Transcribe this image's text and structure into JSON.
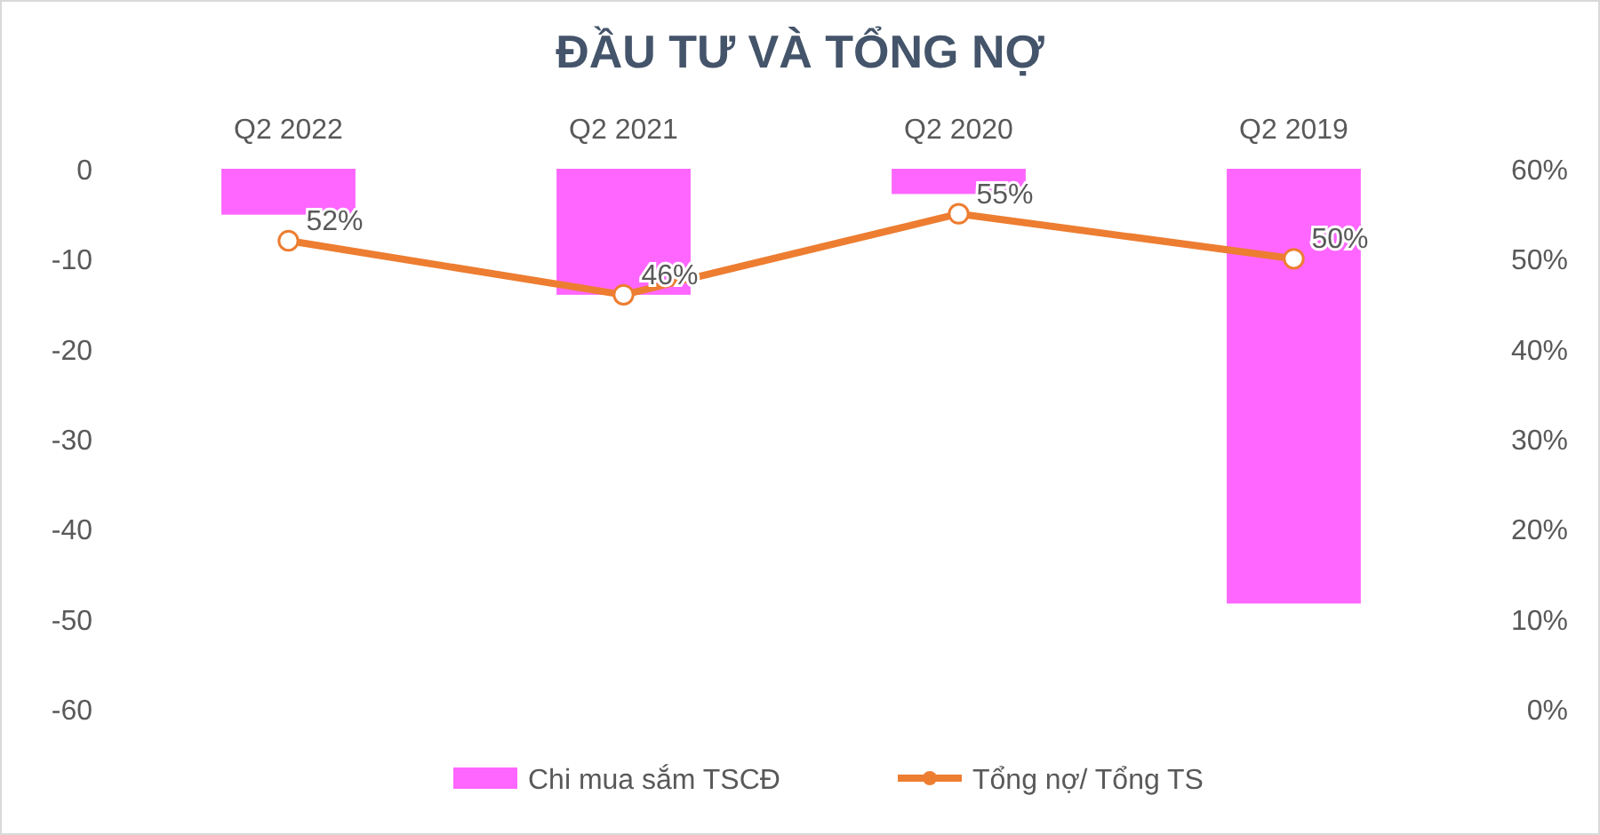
{
  "chart_data": {
    "type": "bar",
    "title": "ĐẦU TƯ VÀ TỔNG NỢ",
    "categories": [
      "Q2 2022",
      "Q2 2021",
      "Q2 2020",
      "Q2 2019"
    ],
    "series": [
      {
        "name": "Chi mua sắm TSCĐ",
        "color": "#ff66ff",
        "values": [
          -5.1,
          -14,
          -2.8,
          -48.3
        ]
      },
      {
        "name": "Tổng nợ/ Tổng TS",
        "type": "line",
        "axis": "y2",
        "color": "#ed7d31",
        "values": [
          52,
          46,
          55,
          50
        ],
        "value_labels": [
          "52%",
          "46%",
          "55%",
          "50%"
        ]
      }
    ],
    "ylim": [
      -60,
      0
    ],
    "yticks": [
      -60,
      -50,
      -40,
      -30,
      -20,
      -10,
      0
    ],
    "y2lim": [
      0,
      60
    ],
    "y2ticks": [
      {
        "value": 0,
        "label": "0%"
      },
      {
        "value": 10,
        "label": "10%"
      },
      {
        "value": 20,
        "label": "20%"
      },
      {
        "value": 30,
        "label": "30%"
      },
      {
        "value": 40,
        "label": "40%"
      },
      {
        "value": 50,
        "label": "50%"
      },
      {
        "value": 60,
        "label": "60%"
      }
    ],
    "grid": false,
    "legend": "bottom",
    "marker": "circle",
    "line_style": "solid"
  }
}
